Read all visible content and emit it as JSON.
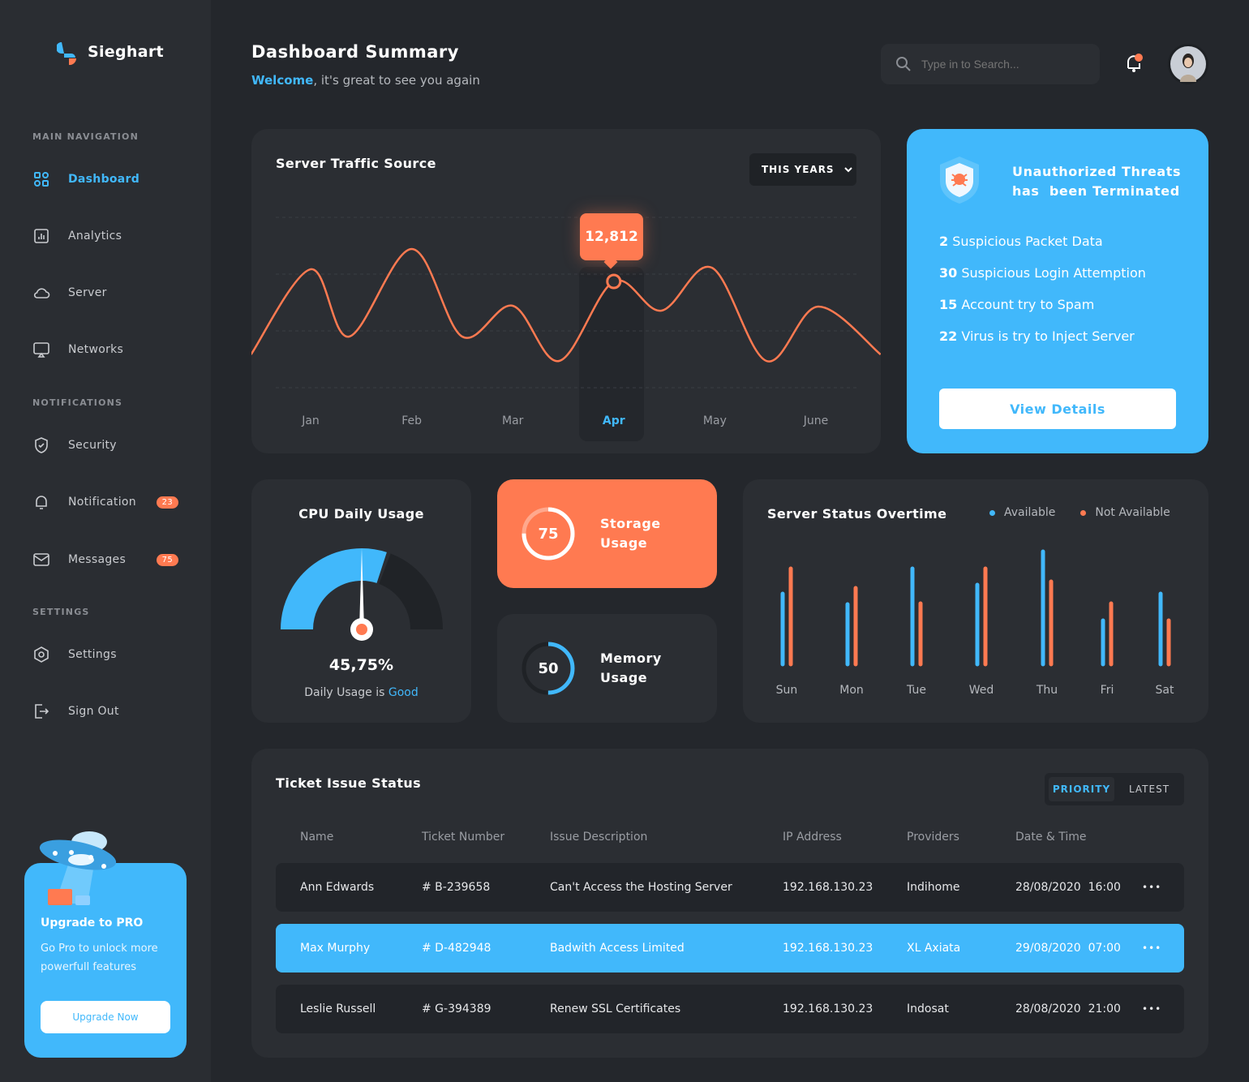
{
  "brand": {
    "name": "Sieghart"
  },
  "sidebar": {
    "sections": [
      "MAIN NAVIGATION",
      "NOTIFICATIONS",
      "SETTINGS"
    ],
    "items": [
      {
        "label": "Dashboard",
        "icon": "dashboard-icon"
      },
      {
        "label": "Analytics",
        "icon": "analytics-icon"
      },
      {
        "label": "Server",
        "icon": "cloud-icon"
      },
      {
        "label": "Networks",
        "icon": "monitor-icon"
      },
      {
        "label": "Security",
        "icon": "shield-icon"
      },
      {
        "label": "Notification",
        "icon": "bell-icon",
        "badge": "23"
      },
      {
        "label": "Messages",
        "icon": "mail-icon",
        "badge": "75"
      },
      {
        "label": "Settings",
        "icon": "gear-icon"
      },
      {
        "label": "Sign Out",
        "icon": "sign-out-icon"
      }
    ],
    "upgrade": {
      "title": "Upgrade to PRO",
      "text1": "Go Pro to unlock more",
      "text2": "powerfull features",
      "button": "Upgrade Now"
    }
  },
  "header": {
    "title": "Dashboard Summary",
    "welcome": "Welcome",
    "subtitle": ", it's great to see you again",
    "search_placeholder": "Type in to Search..."
  },
  "traffic": {
    "title": "Server Traffic Source",
    "filter": "THIS YEARS",
    "tooltip": "12,812"
  },
  "threats": {
    "title1": "Unauthorized Threats",
    "title2": "has  been Terminated",
    "items": [
      {
        "n": "2",
        "t": "Suspicious Packet Data"
      },
      {
        "n": "30",
        "t": "Suspicious Login Attemption"
      },
      {
        "n": "15",
        "t": "Account try to Spam"
      },
      {
        "n": "22",
        "t": "Virus is try to Inject Server"
      }
    ],
    "button": "View Details"
  },
  "cpu": {
    "title": "CPU Daily Usage",
    "value": "45,75%",
    "status_prefix": "Daily Usage is ",
    "status": "Good",
    "fraction": 0.6
  },
  "storage": {
    "value": "75",
    "label1": "Storage",
    "label2": "Usage",
    "percent": 75
  },
  "memory": {
    "value": "50",
    "label1": "Memory",
    "label2": "Usage",
    "percent": 50
  },
  "chart_data": [
    {
      "type": "line",
      "title": "Server Traffic Source",
      "categories": [
        "Jan",
        "Feb",
        "Mar",
        "Apr",
        "May",
        "June"
      ],
      "highlight": "Apr",
      "x": [
        -0.59,
        0,
        0.38,
        1,
        1.5,
        2.0,
        2.46,
        3,
        3.47,
        3.97,
        4.51,
        5.02,
        5.64
      ],
      "y": [
        4010,
        14279,
        6161,
        16724,
        6161,
        9878,
        3227,
        12812,
        9291,
        14474,
        3227,
        9780,
        4010
      ],
      "ylim": [
        0,
        20000
      ],
      "grid": true
    },
    {
      "type": "bar",
      "title": "Server Status Overtime",
      "categories": [
        "Sun",
        "Mon",
        "Tue",
        "Wed",
        "Thu",
        "Fri",
        "Sat"
      ],
      "series": [
        {
          "name": "Available",
          "color": "#41b8fb",
          "values": [
            87,
            74,
            118,
            98,
            139,
            54,
            87
          ]
        },
        {
          "name": "Not Available",
          "color": "#ff7a51",
          "values": [
            118,
            94,
            75,
            118,
            102,
            75,
            54
          ]
        }
      ],
      "ylim": [
        0,
        140
      ],
      "legend": "top-right"
    }
  ],
  "tickets": {
    "title": "Ticket Issue Status",
    "tabs": [
      "PRIORITY",
      "LATEST"
    ],
    "columns": [
      "Name",
      "Ticket Number",
      "Issue Description",
      "IP Address",
      "Providers",
      "Date & Time"
    ],
    "rows": [
      [
        "Ann Edwards",
        "# B-239658",
        "Can't Access the Hosting Server",
        "192.168.130.23",
        "Indihome",
        "28/08/2020  16:00"
      ],
      [
        "Max Murphy",
        "# D-482948",
        "Badwith Access Limited",
        "192.168.130.23",
        "XL Axiata",
        "29/08/2020  07:00"
      ],
      [
        "Leslie Russell",
        "# G-394389",
        "Renew SSL Certificates",
        "192.168.130.23",
        "Indosat",
        "28/08/2020  21:00"
      ]
    ],
    "more": "•••"
  },
  "colors": {
    "blue": "#41b8fb",
    "orange": "#ff7a51"
  }
}
